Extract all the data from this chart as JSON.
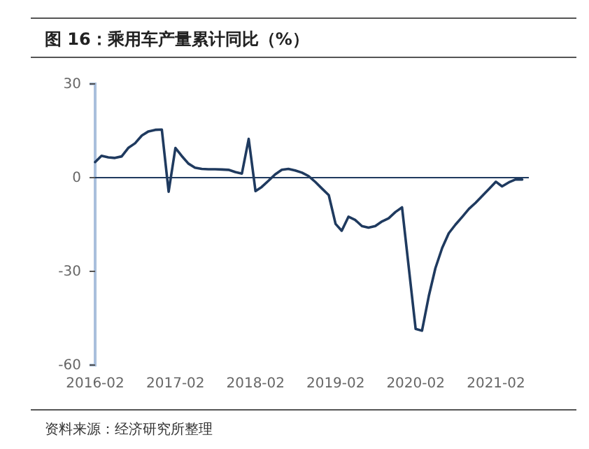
{
  "chart_data": {
    "type": "line",
    "title": "图 16：乘用车产量累计同比（%）",
    "annotations": [
      "资料来源：经济研究所整理"
    ],
    "x": [
      "2016-02",
      "2016-03",
      "2016-04",
      "2016-05",
      "2016-06",
      "2016-07",
      "2016-08",
      "2016-09",
      "2016-10",
      "2016-11",
      "2016-12",
      "2017-01",
      "2017-02",
      "2017-03",
      "2017-04",
      "2017-05",
      "2017-06",
      "2017-07",
      "2017-08",
      "2017-09",
      "2017-10",
      "2017-11",
      "2017-12",
      "2018-01",
      "2018-02",
      "2018-03",
      "2018-04",
      "2018-05",
      "2018-06",
      "2018-07",
      "2018-08",
      "2018-09",
      "2018-10",
      "2018-11",
      "2018-12",
      "2019-01",
      "2019-02",
      "2019-03",
      "2019-04",
      "2019-05",
      "2019-06",
      "2019-07",
      "2019-08",
      "2019-09",
      "2019-10",
      "2019-11",
      "2019-12",
      "2020-02",
      "2020-03",
      "2020-04",
      "2020-05",
      "2020-06",
      "2020-07",
      "2020-08",
      "2020-09",
      "2020-10",
      "2020-11",
      "2020-12",
      "2021-01",
      "2021-02",
      "2021-03",
      "2021-04",
      "2021-05",
      "2021-06"
    ],
    "series": [
      {
        "color": "#1f3a5f",
        "values": [
          5,
          7,
          6.5,
          6.3,
          6.8,
          9.5,
          11,
          13.5,
          14.8,
          15.3,
          15.4,
          -4.5,
          9.5,
          7,
          4.5,
          3.2,
          2.8,
          2.7,
          2.7,
          2.6,
          2.5,
          1.8,
          1.3,
          12.4,
          -4.3,
          -3,
          -1,
          1,
          2.5,
          2.8,
          2.3,
          1.6,
          0.5,
          -1.4,
          -3.5,
          -5.6,
          -14.8,
          -17,
          -12.5,
          -13.5,
          -15.5,
          -16,
          -15.5,
          -14,
          -13,
          -11,
          -9.5,
          -48.4,
          -49,
          -37.9,
          -29,
          -22.5,
          -17.8,
          -15,
          -12.5,
          -10,
          -8,
          -5.8,
          -3.6,
          -1.3,
          -2.8,
          -1.5,
          -0.6,
          -0.6
        ]
      }
    ],
    "xlim": [
      "2016-02",
      "2021-07"
    ],
    "xticks": [
      "2016-02",
      "2017-02",
      "2018-02",
      "2019-02",
      "2020-02",
      "2021-02"
    ],
    "ylim": [
      -60,
      30
    ],
    "yticks": [
      30,
      0,
      -30,
      -60
    ],
    "ref_lines": [
      {
        "axis": "y",
        "value": 0,
        "color": "#1f3a5f"
      }
    ],
    "grid": false,
    "marker": "none",
    "line_style": "solid"
  }
}
